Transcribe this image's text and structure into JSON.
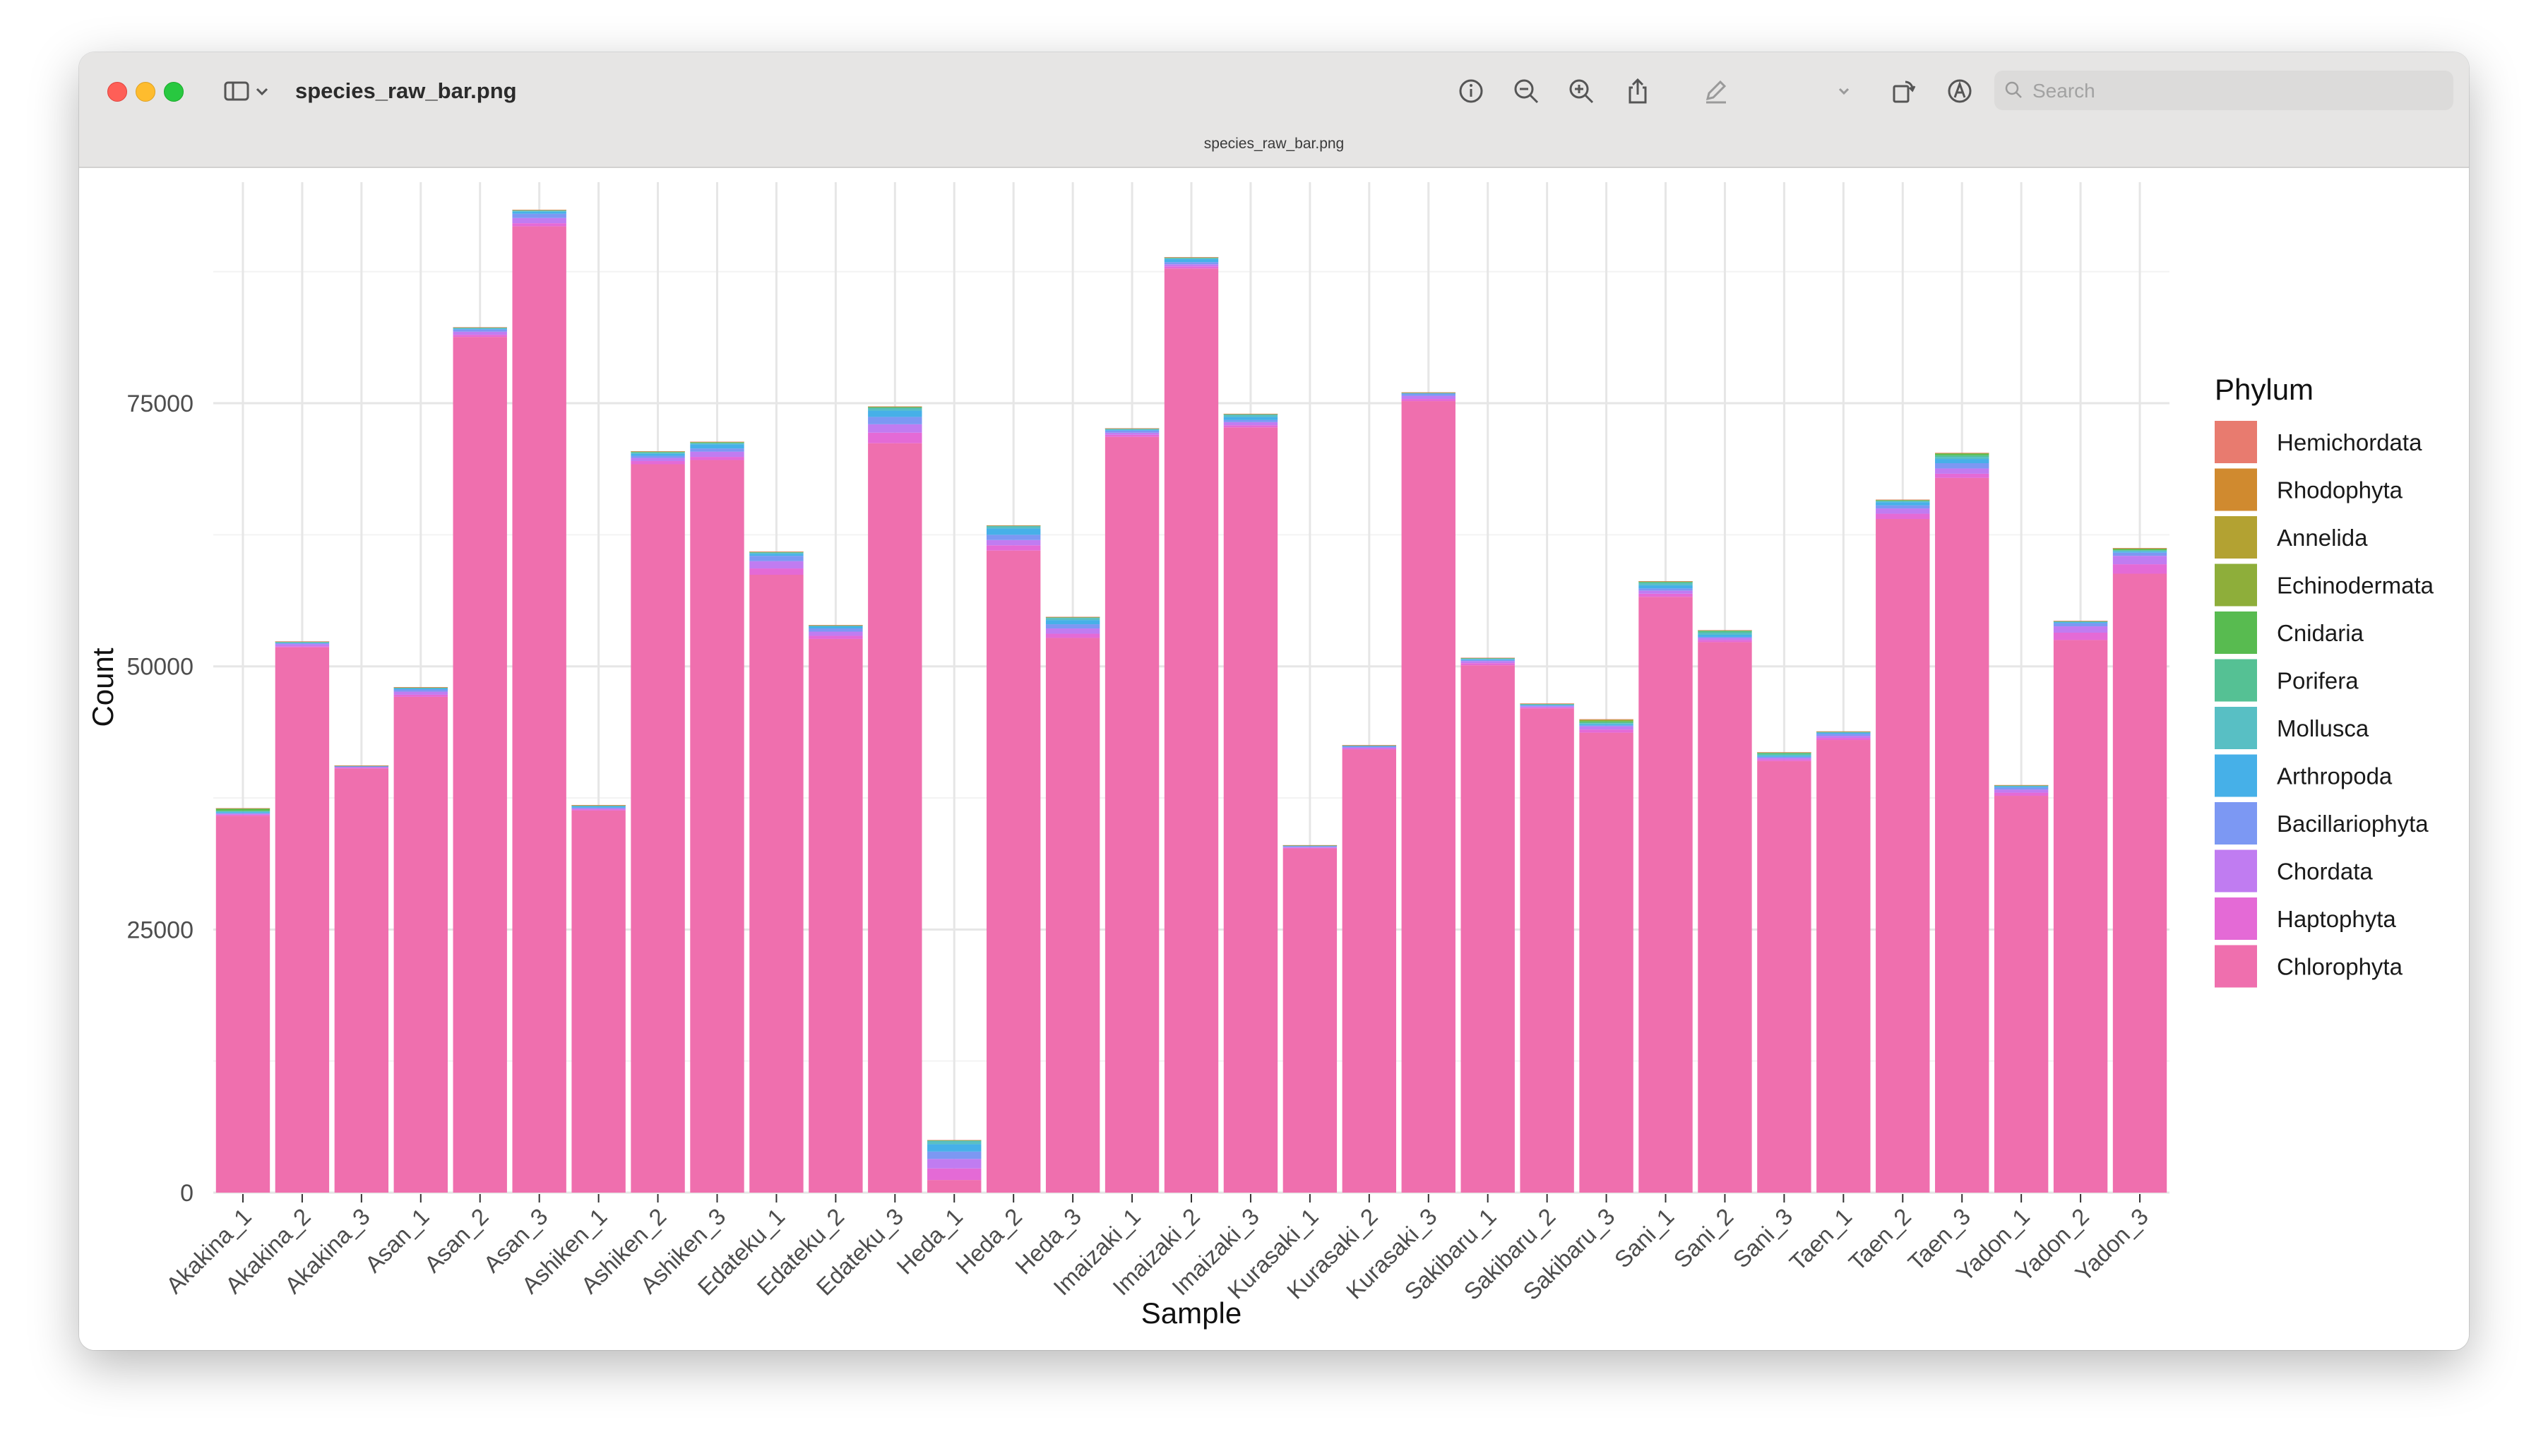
{
  "window": {
    "title": "species_raw_bar.png",
    "document_title": "species_raw_bar.png",
    "search_placeholder": "Search"
  },
  "toolbar": {
    "icons": [
      "info-icon",
      "zoom-out-icon",
      "zoom-in-icon",
      "share-icon",
      "markup-icon",
      "chevron-down-icon",
      "rotate-icon",
      "annotate-icon",
      "sign-icon"
    ]
  },
  "chart_data": {
    "type": "bar",
    "stacked": true,
    "xlabel": "Sample",
    "ylabel": "Count",
    "ylim": [
      0,
      96000
    ],
    "yticks": [
      0,
      25000,
      50000,
      75000
    ],
    "legend_title": "Phylum",
    "legend_position": "right",
    "grid": true,
    "categories": [
      "Akakina_1",
      "Akakina_2",
      "Akakina_3",
      "Asan_1",
      "Asan_2",
      "Asan_3",
      "Ashiken_1",
      "Ashiken_2",
      "Ashiken_3",
      "Edateku_1",
      "Edateku_2",
      "Edateku_3",
      "Heda_1",
      "Heda_2",
      "Heda_3",
      "Imaizaki_1",
      "Imaizaki_2",
      "Imaizaki_3",
      "Kurasaki_1",
      "Kurasaki_2",
      "Kurasaki_3",
      "Sakibaru_1",
      "Sakibaru_2",
      "Sakibaru_3",
      "Sani_1",
      "Sani_2",
      "Sani_3",
      "Taen_1",
      "Taen_2",
      "Taen_3",
      "Yadon_1",
      "Yadon_2",
      "Yadon_3"
    ],
    "series": [
      {
        "name": "Chlorophyta",
        "color": "#ef6fae",
        "values": [
          35800,
          51800,
          40300,
          47100,
          81300,
          91800,
          36300,
          69200,
          69600,
          58700,
          52600,
          71200,
          1200,
          61000,
          52700,
          71800,
          87800,
          72700,
          32700,
          42100,
          75200,
          50100,
          46000,
          43700,
          56600,
          52300,
          41000,
          43000,
          64000,
          67900,
          37700,
          52500,
          58800
        ]
      },
      {
        "name": "Haptophyta",
        "color": "#e46ad6",
        "values": [
          100,
          100,
          50,
          200,
          200,
          300,
          100,
          300,
          300,
          600,
          300,
          1000,
          1100,
          500,
          400,
          200,
          200,
          200,
          50,
          100,
          200,
          200,
          100,
          300,
          300,
          200,
          150,
          200,
          500,
          400,
          300,
          700,
          900
        ]
      },
      {
        "name": "Chordata",
        "color": "#c07cf1",
        "values": [
          100,
          200,
          100,
          300,
          300,
          500,
          100,
          300,
          500,
          700,
          400,
          800,
          900,
          500,
          500,
          200,
          200,
          300,
          100,
          100,
          300,
          200,
          100,
          300,
          300,
          200,
          150,
          200,
          500,
          500,
          300,
          600,
          800
        ]
      },
      {
        "name": "Bacillariophyta",
        "color": "#7c98f3",
        "values": [
          50,
          100,
          50,
          200,
          200,
          400,
          100,
          200,
          300,
          500,
          300,
          700,
          700,
          500,
          400,
          200,
          200,
          200,
          50,
          100,
          200,
          100,
          100,
          100,
          200,
          100,
          100,
          200,
          300,
          500,
          200,
          300,
          300
        ]
      },
      {
        "name": "Arthropoda",
        "color": "#46b0e8",
        "values": [
          100,
          50,
          20,
          100,
          100,
          200,
          100,
          200,
          400,
          200,
          200,
          600,
          700,
          600,
          400,
          100,
          300,
          300,
          50,
          50,
          50,
          100,
          50,
          100,
          300,
          200,
          100,
          100,
          300,
          400,
          100,
          100,
          100
        ]
      },
      {
        "name": "Mollusca",
        "color": "#58bfc4",
        "values": [
          100,
          50,
          20,
          50,
          50,
          100,
          50,
          100,
          100,
          100,
          50,
          200,
          300,
          200,
          200,
          50,
          100,
          200,
          20,
          20,
          20,
          50,
          50,
          100,
          200,
          200,
          100,
          50,
          100,
          200,
          50,
          50,
          100
        ]
      },
      {
        "name": "Porifera",
        "color": "#55c194",
        "values": [
          20,
          20,
          10,
          20,
          20,
          30,
          20,
          50,
          50,
          50,
          20,
          100,
          50,
          50,
          50,
          20,
          20,
          50,
          10,
          10,
          20,
          20,
          20,
          100,
          100,
          150,
          150,
          20,
          50,
          150,
          20,
          20,
          50
        ]
      },
      {
        "name": "Cnidaria",
        "color": "#58bb50",
        "values": [
          200,
          20,
          10,
          20,
          20,
          20,
          20,
          50,
          50,
          20,
          20,
          50,
          20,
          20,
          20,
          20,
          20,
          20,
          10,
          10,
          10,
          20,
          20,
          100,
          50,
          50,
          50,
          20,
          50,
          150,
          20,
          20,
          100
        ]
      },
      {
        "name": "Echinodermata",
        "color": "#8eae3a",
        "values": [
          30,
          10,
          10,
          10,
          10,
          10,
          10,
          20,
          20,
          10,
          10,
          20,
          10,
          10,
          10,
          10,
          10,
          10,
          10,
          10,
          10,
          10,
          10,
          100,
          20,
          20,
          20,
          10,
          20,
          50,
          10,
          10,
          50
        ]
      },
      {
        "name": "Annelida",
        "color": "#b3a232",
        "values": [
          10,
          10,
          5,
          10,
          10,
          10,
          10,
          10,
          10,
          10,
          10,
          10,
          10,
          10,
          10,
          10,
          10,
          10,
          5,
          5,
          10,
          10,
          10,
          50,
          10,
          10,
          10,
          10,
          10,
          20,
          10,
          10,
          20
        ]
      },
      {
        "name": "Rhodophyta",
        "color": "#d08a2f",
        "values": [
          10,
          5,
          5,
          5,
          5,
          5,
          5,
          5,
          5,
          5,
          5,
          5,
          5,
          5,
          5,
          5,
          5,
          5,
          5,
          5,
          5,
          5,
          5,
          20,
          5,
          5,
          5,
          5,
          5,
          10,
          5,
          5,
          10
        ]
      },
      {
        "name": "Hemichordata",
        "color": "#e87b6f",
        "values": [
          5,
          5,
          5,
          5,
          5,
          5,
          5,
          5,
          5,
          5,
          5,
          5,
          5,
          5,
          5,
          5,
          5,
          5,
          5,
          5,
          5,
          5,
          5,
          10,
          5,
          5,
          5,
          5,
          5,
          5,
          5,
          5,
          5
        ]
      }
    ]
  }
}
